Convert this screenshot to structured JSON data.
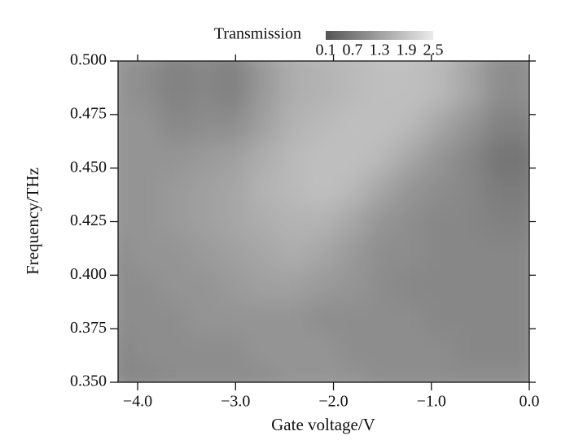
{
  "chart_data": {
    "type": "heatmap",
    "x_label": "Gate voltage/V",
    "y_label": "Frequency/THz",
    "colorbar_label": "Transmission",
    "x": [
      -4.05,
      -3.75,
      -3.45,
      -3.15,
      -2.85,
      -2.55,
      -2.25,
      -1.95,
      -1.65,
      -1.35,
      -1.05,
      -0.75,
      -0.45,
      -0.15
    ],
    "y": [
      0.3575,
      0.3725,
      0.3875,
      0.4025,
      0.4175,
      0.4325,
      0.4475,
      0.4625,
      0.4775,
      0.4925
    ],
    "values": [
      [
        0.9,
        0.9,
        1.0,
        1.0,
        1.0,
        1.0,
        1.1,
        1.1,
        1.1,
        1.0,
        1.0,
        1.0,
        1.0,
        1.0
      ],
      [
        0.9,
        1.0,
        1.0,
        1.0,
        1.0,
        1.1,
        1.1,
        1.1,
        1.0,
        1.0,
        1.0,
        1.0,
        0.9,
        0.9
      ],
      [
        1.0,
        1.0,
        1.0,
        1.1,
        1.1,
        1.1,
        1.1,
        1.0,
        1.0,
        1.0,
        1.0,
        0.9,
        0.9,
        0.9
      ],
      [
        1.0,
        1.0,
        1.1,
        1.1,
        1.2,
        1.3,
        1.3,
        1.2,
        1.1,
        1.0,
        0.9,
        0.9,
        0.9,
        0.9
      ],
      [
        1.0,
        1.1,
        1.1,
        1.2,
        1.3,
        1.4,
        1.5,
        1.4,
        1.2,
        1.0,
        1.0,
        0.9,
        0.9,
        0.9
      ],
      [
        1.1,
        1.1,
        1.2,
        1.3,
        1.4,
        1.5,
        1.6,
        1.6,
        1.4,
        1.1,
        1.0,
        0.9,
        0.9,
        0.8
      ],
      [
        1.1,
        1.1,
        1.2,
        1.3,
        1.4,
        1.6,
        1.7,
        1.8,
        1.7,
        1.4,
        1.1,
        1.0,
        0.9,
        0.7
      ],
      [
        1.1,
        1.1,
        1.1,
        1.2,
        1.3,
        1.5,
        1.7,
        1.8,
        1.8,
        1.7,
        1.4,
        1.1,
        0.9,
        0.6
      ],
      [
        1.1,
        1.1,
        0.9,
        1.0,
        1.0,
        1.3,
        1.6,
        1.7,
        1.8,
        1.8,
        1.7,
        1.4,
        1.1,
        0.8
      ],
      [
        1.1,
        1.0,
        0.8,
        0.9,
        0.8,
        1.2,
        1.5,
        1.6,
        1.7,
        1.8,
        1.8,
        1.7,
        1.4,
        1.0
      ]
    ],
    "xlim": [
      -4.2,
      0
    ],
    "ylim": [
      0.35,
      0.5
    ],
    "xticks": [
      {
        "value": -4,
        "label": "−4.0"
      },
      {
        "value": -3,
        "label": "−3.0"
      },
      {
        "value": -2,
        "label": "−2.0"
      },
      {
        "value": -1,
        "label": "−1.0"
      },
      {
        "value": 0,
        "label": "0.0"
      }
    ],
    "yticks": [
      {
        "value": 0.35,
        "label": "0.350"
      },
      {
        "value": 0.375,
        "label": "0.375"
      },
      {
        "value": 0.4,
        "label": "0.400"
      },
      {
        "value": 0.425,
        "label": "0.425"
      },
      {
        "value": 0.45,
        "label": "0.450"
      },
      {
        "value": 0.475,
        "label": "0.475"
      },
      {
        "value": 0.5,
        "label": "0.500"
      }
    ],
    "clim": [
      0.1,
      2.5
    ],
    "cticks": [
      0.1,
      0.7,
      1.3,
      1.9,
      2.5
    ],
    "colormap": [
      "#555555",
      "#ebebeb"
    ]
  }
}
